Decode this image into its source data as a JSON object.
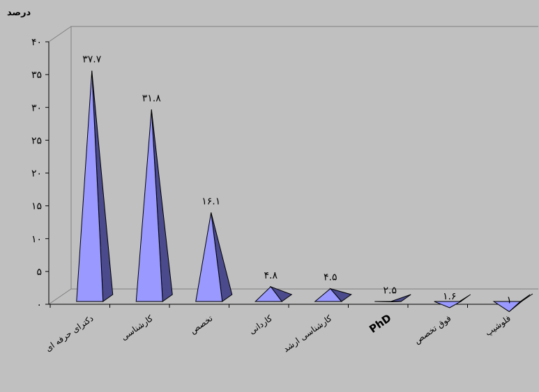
{
  "chart_data": {
    "type": "bar",
    "style": "3d-pyramid",
    "ylabel": "درصد",
    "xlabel": "",
    "title": "",
    "ylim": [
      0,
      40
    ],
    "yticks": [
      0,
      5,
      10,
      15,
      20,
      25,
      30,
      35,
      40
    ],
    "ytick_labels": [
      "۰",
      "۵",
      "۱۰",
      "۱۵",
      "۲۰",
      "۲۵",
      "۳۰",
      "۳۵",
      "۴۰"
    ],
    "categories": [
      "دکترای حرفه ای",
      "کارشناسی",
      "تخصص",
      "کاردانی",
      "کارشناسی ارشد",
      "PhD",
      "فوق تخصص",
      "فلوشیپ"
    ],
    "values": [
      37.7,
      31.8,
      16.1,
      4.8,
      4.5,
      2.5,
      1.6,
      1
    ],
    "data_labels": [
      "۳۷.۷",
      "۳۱.۸",
      "۱۶.۱",
      "۴.۸",
      "۴.۵",
      "۲.۵",
      "۱.۶",
      "۱"
    ],
    "grid": false,
    "legend": "none",
    "colors": {
      "background": "#c0c0c0",
      "pyramid_front": "#9999ff",
      "pyramid_side": "#4a4a8c",
      "pyramid_outline": "#000000"
    }
  }
}
